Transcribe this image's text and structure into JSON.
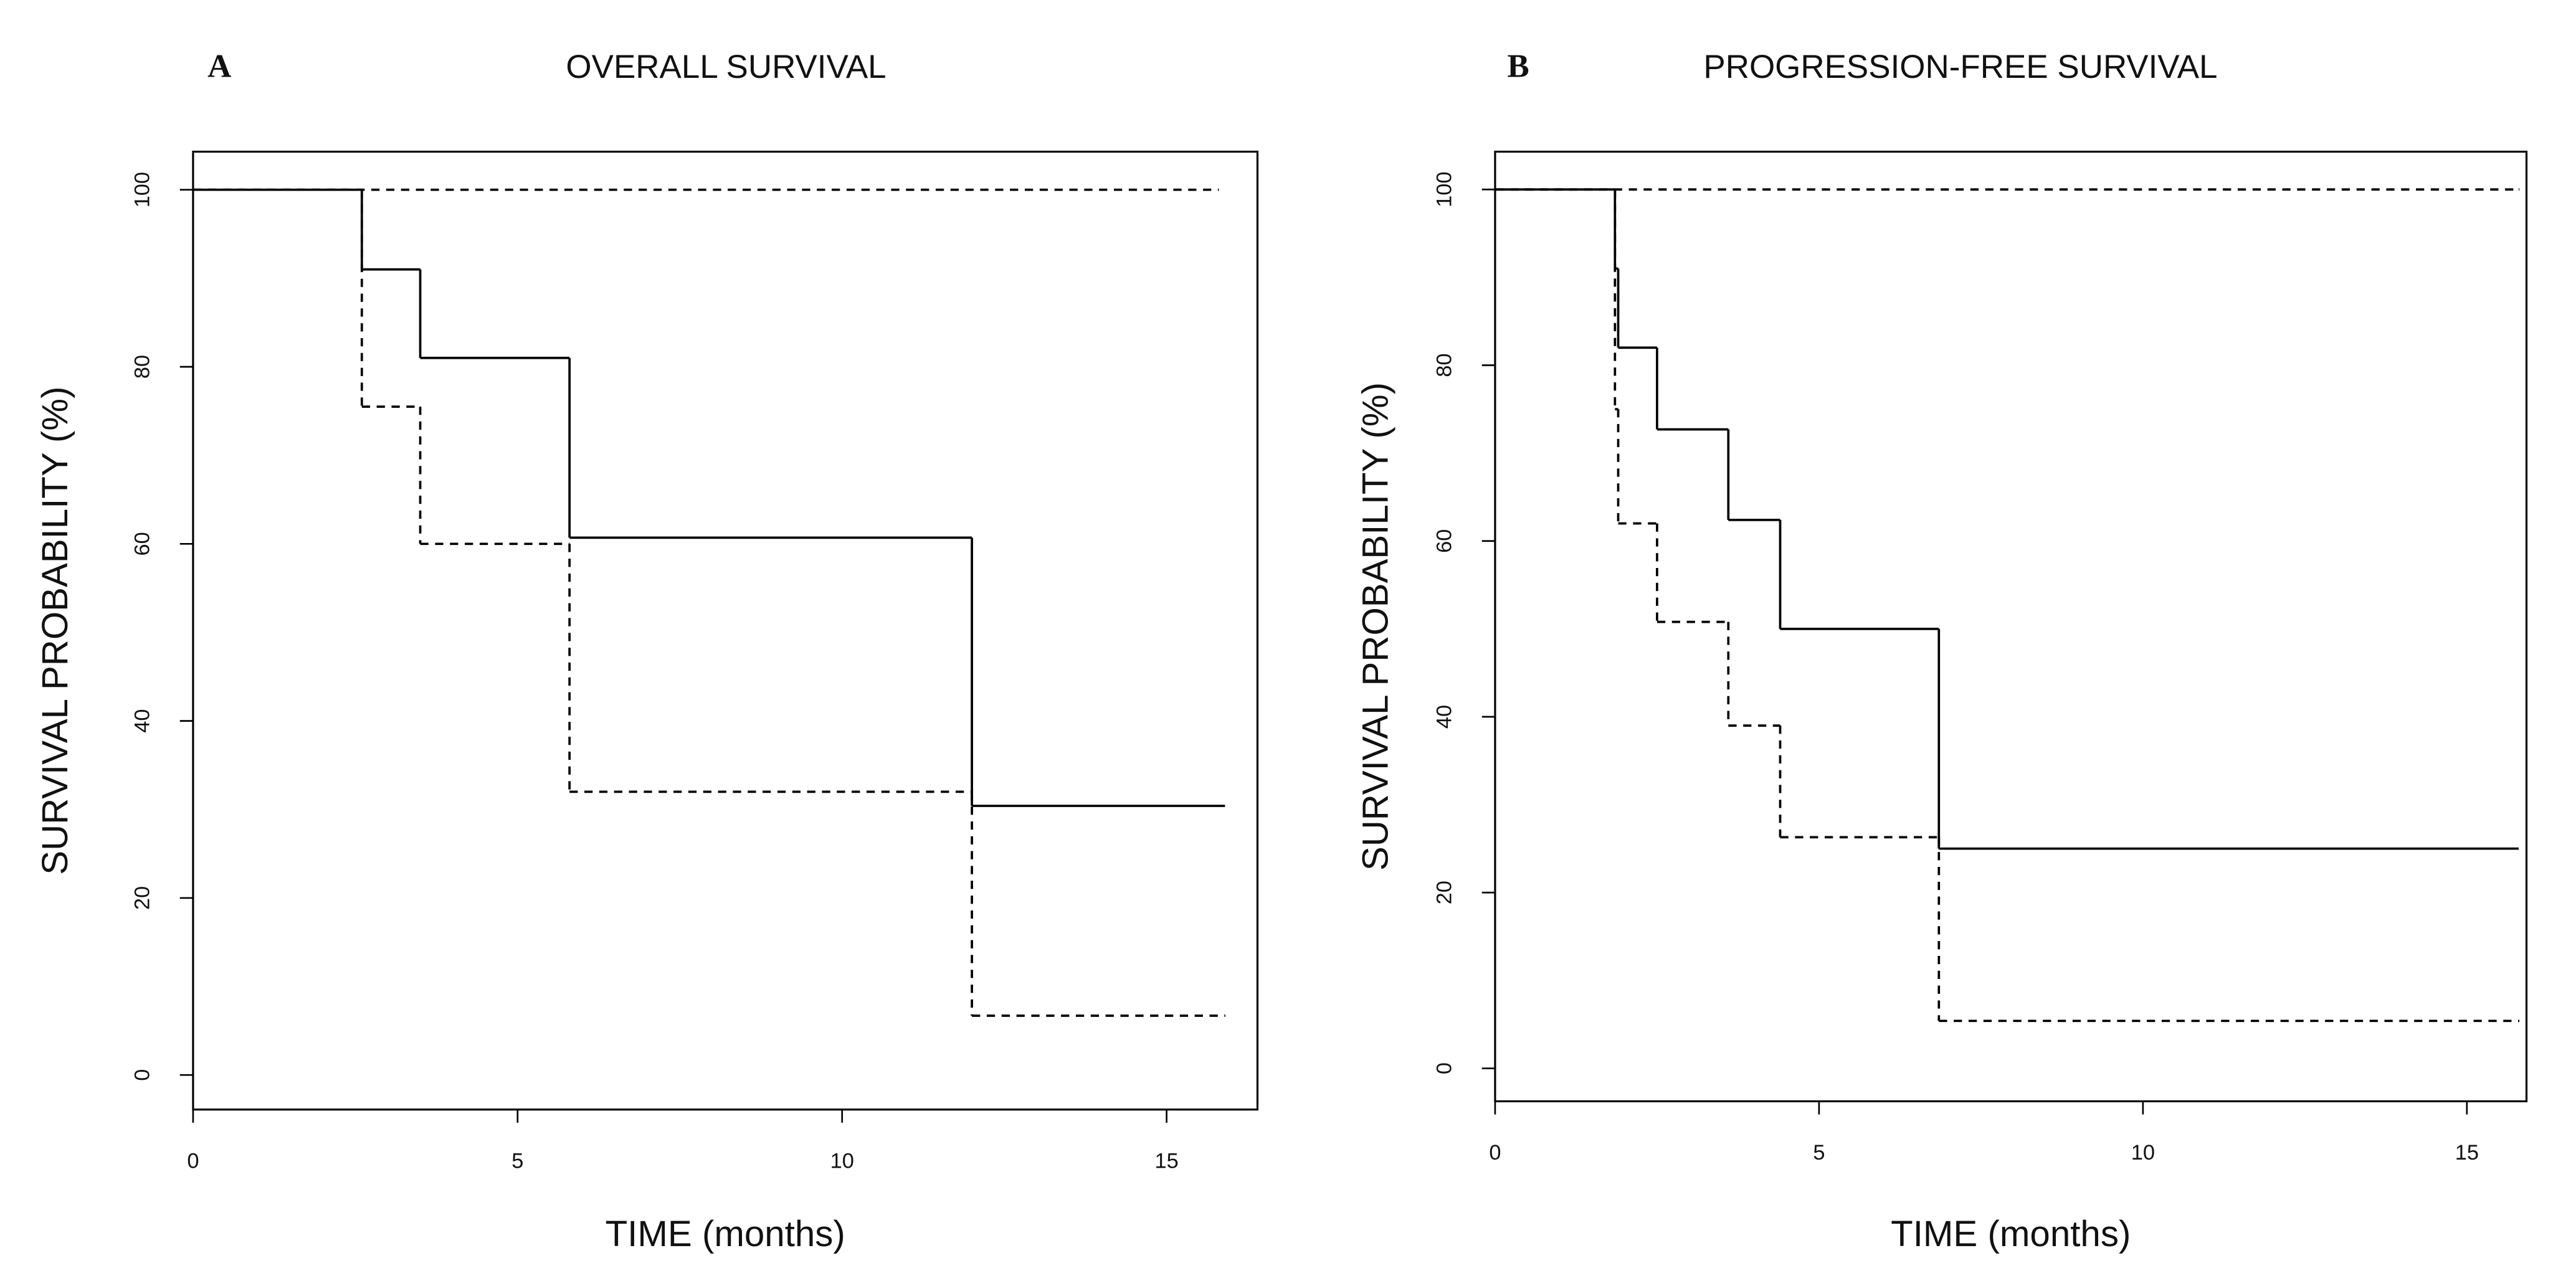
{
  "chart_data": [
    {
      "type": "line",
      "step": "post",
      "panel_label": "A",
      "title": "OVERALL SURVIVAL",
      "x_label": "TIME (months)",
      "y_label": "SURVIVAL PROBABILITY (%)",
      "xlim": [
        0,
        16.4
      ],
      "ylim": [
        -3.9,
        104.3
      ],
      "xticks": [
        0,
        5,
        10,
        15
      ],
      "yticks": [
        0,
        20,
        40,
        60,
        80,
        100
      ],
      "series": [
        {
          "color": "#000000",
          "line_style": "solid",
          "x": [
            0,
            2.6,
            3.5,
            5.8,
            12.0,
            15.9
          ],
          "values": [
            100,
            91,
            81,
            60.7,
            30.4,
            30.4
          ]
        },
        {
          "color": "#000000",
          "line_style": "dashed",
          "x": [
            0,
            2.6,
            3.5,
            5.8,
            12.0,
            15.9
          ],
          "values": [
            100,
            75.5,
            60,
            32,
            6.7,
            6.7
          ]
        },
        {
          "color": "#000000",
          "line_style": "dashed",
          "x": [
            0,
            15.8
          ],
          "values": [
            100,
            100
          ]
        }
      ]
    },
    {
      "type": "line",
      "step": "post",
      "panel_label": "B",
      "title": "PROGRESSION-FREE SURVIVAL",
      "x_label": "TIME (months)",
      "y_label": "SURVIVAL PROBABILITY (%)",
      "xlim": [
        0,
        15.92
      ],
      "ylim": [
        -3.75,
        104.3
      ],
      "xticks": [
        0,
        5,
        10,
        15
      ],
      "yticks": [
        0,
        20,
        40,
        60,
        80,
        100
      ],
      "series": [
        {
          "color": "#000000",
          "line_style": "solid",
          "x": [
            0,
            1.85,
            1.9,
            2.5,
            3.6,
            4.4,
            6.85,
            15.8
          ],
          "values": [
            100,
            91,
            82,
            72.7,
            62.4,
            50,
            25,
            25
          ]
        },
        {
          "color": "#000000",
          "line_style": "dashed",
          "x": [
            0,
            1.85,
            1.9,
            2.5,
            3.6,
            4.4,
            6.85,
            15.8
          ],
          "values": [
            100,
            75,
            62,
            50.8,
            39,
            26.3,
            5.4,
            5.4
          ]
        },
        {
          "color": "#000000",
          "line_style": "dashed",
          "x": [
            0,
            15.8
          ],
          "values": [
            100,
            100
          ]
        }
      ]
    }
  ]
}
